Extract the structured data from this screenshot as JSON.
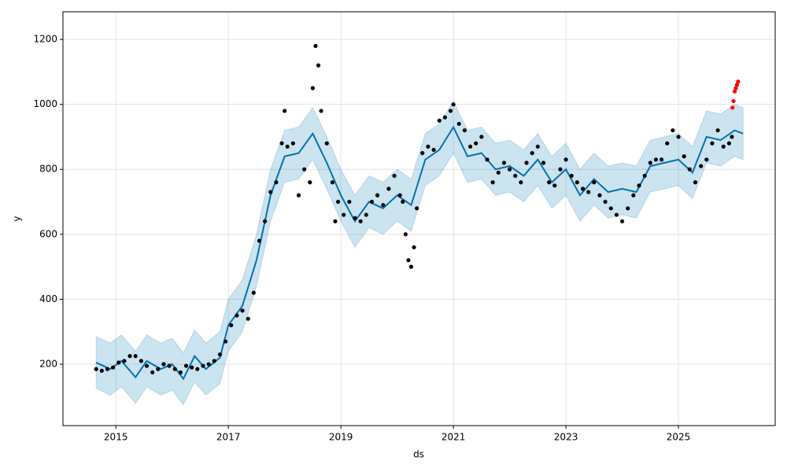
{
  "chart_data": {
    "type": "forecast",
    "xlabel": "ds",
    "ylabel": "y",
    "xlim": [
      2014.06,
      2026.72
    ],
    "ylim": [
      11,
      1285
    ],
    "xticks": [
      2015,
      2017,
      2019,
      2021,
      2023,
      2025
    ],
    "yticks": [
      200,
      400,
      600,
      800,
      1000,
      1200
    ],
    "grid": true,
    "series": [
      {
        "type": "band",
        "color": "#0072B2",
        "x": [
          2014.65,
          2014.9,
          2015.1,
          2015.35,
          2015.55,
          2015.8,
          2016.0,
          2016.2,
          2016.4,
          2016.6,
          2016.85,
          2017.0,
          2017.25,
          2017.5,
          2017.75,
          2018.0,
          2018.25,
          2018.5,
          2018.75,
          2019.0,
          2019.25,
          2019.5,
          2019.75,
          2020.0,
          2020.25,
          2020.5,
          2020.75,
          2021.0,
          2021.25,
          2021.5,
          2021.75,
          2022.0,
          2022.25,
          2022.5,
          2022.75,
          2023.0,
          2023.25,
          2023.5,
          2023.75,
          2024.0,
          2024.25,
          2024.5,
          2024.75,
          2025.0,
          2025.25,
          2025.5,
          2025.75,
          2026.0,
          2026.15
        ],
        "upper": [
          285,
          265,
          290,
          240,
          290,
          265,
          280,
          235,
          305,
          265,
          300,
          400,
          460,
          600,
          800,
          920,
          930,
          990,
          900,
          800,
          720,
          780,
          760,
          800,
          770,
          910,
          940,
          1010,
          920,
          930,
          880,
          890,
          860,
          910,
          840,
          880,
          800,
          850,
          810,
          820,
          810,
          890,
          900,
          910,
          870,
          980,
          970,
          1000,
          990
        ],
        "lower": [
          125,
          105,
          130,
          80,
          130,
          105,
          120,
          75,
          145,
          105,
          140,
          240,
          300,
          440,
          640,
          760,
          770,
          830,
          740,
          640,
          560,
          620,
          600,
          640,
          610,
          750,
          780,
          850,
          760,
          770,
          720,
          730,
          700,
          750,
          680,
          720,
          640,
          690,
          650,
          660,
          650,
          730,
          740,
          750,
          710,
          820,
          810,
          840,
          830
        ]
      },
      {
        "type": "line",
        "color": "#0072B2",
        "x": [
          2014.65,
          2014.9,
          2015.1,
          2015.35,
          2015.55,
          2015.8,
          2016.0,
          2016.2,
          2016.4,
          2016.6,
          2016.85,
          2017.0,
          2017.25,
          2017.5,
          2017.75,
          2018.0,
          2018.25,
          2018.5,
          2018.75,
          2019.0,
          2019.25,
          2019.5,
          2019.75,
          2020.0,
          2020.25,
          2020.5,
          2020.75,
          2021.0,
          2021.25,
          2021.5,
          2021.75,
          2022.0,
          2022.25,
          2022.5,
          2022.75,
          2023.0,
          2023.25,
          2023.5,
          2023.75,
          2024.0,
          2024.25,
          2024.5,
          2024.75,
          2025.0,
          2025.25,
          2025.5,
          2025.75,
          2026.0,
          2026.15
        ],
        "values": [
          205,
          185,
          210,
          160,
          210,
          185,
          200,
          155,
          225,
          185,
          220,
          320,
          380,
          520,
          720,
          840,
          850,
          910,
          820,
          720,
          640,
          700,
          680,
          720,
          690,
          830,
          860,
          930,
          840,
          850,
          800,
          810,
          780,
          830,
          760,
          800,
          720,
          770,
          730,
          740,
          730,
          810,
          820,
          830,
          790,
          900,
          890,
          920,
          910
        ]
      },
      {
        "type": "scatter",
        "color": "#000000",
        "x": [
          2014.65,
          2014.75,
          2014.85,
          2014.95,
          2015.05,
          2015.15,
          2015.25,
          2015.35,
          2015.45,
          2015.55,
          2015.65,
          2015.75,
          2015.85,
          2015.95,
          2016.05,
          2016.15,
          2016.25,
          2016.35,
          2016.45,
          2016.55,
          2016.65,
          2016.75,
          2016.85,
          2016.95,
          2017.05,
          2017.15,
          2017.25,
          2017.35,
          2017.45,
          2017.55,
          2017.65,
          2017.75,
          2017.85,
          2017.95,
          2018.0,
          2018.05,
          2018.15,
          2018.25,
          2018.35,
          2018.45,
          2018.5,
          2018.55,
          2018.6,
          2018.65,
          2018.75,
          2018.85,
          2018.9,
          2018.95,
          2019.05,
          2019.15,
          2019.25,
          2019.35,
          2019.45,
          2019.55,
          2019.65,
          2019.75,
          2019.85,
          2019.95,
          2020.05,
          2020.1,
          2020.15,
          2020.2,
          2020.25,
          2020.3,
          2020.35,
          2020.45,
          2020.55,
          2020.65,
          2020.75,
          2020.85,
          2020.95,
          2021.0,
          2021.1,
          2021.2,
          2021.3,
          2021.4,
          2021.5,
          2021.6,
          2021.7,
          2021.8,
          2021.9,
          2022.0,
          2022.1,
          2022.2,
          2022.3,
          2022.4,
          2022.5,
          2022.6,
          2022.7,
          2022.8,
          2022.9,
          2023.0,
          2023.1,
          2023.2,
          2023.3,
          2023.4,
          2023.5,
          2023.6,
          2023.7,
          2023.8,
          2023.9,
          2024.0,
          2024.1,
          2024.2,
          2024.3,
          2024.4,
          2024.5,
          2024.6,
          2024.7,
          2024.8,
          2024.9,
          2025.0,
          2025.1,
          2025.2,
          2025.3,
          2025.4,
          2025.5,
          2025.6,
          2025.7,
          2025.8,
          2025.9,
          2025.95
        ],
        "values": [
          185,
          180,
          185,
          190,
          205,
          210,
          225,
          225,
          210,
          195,
          175,
          185,
          200,
          195,
          185,
          175,
          195,
          190,
          185,
          195,
          200,
          210,
          230,
          270,
          320,
          350,
          365,
          340,
          420,
          580,
          640,
          730,
          760,
          880,
          980,
          870,
          880,
          720,
          800,
          760,
          1050,
          1180,
          1120,
          980,
          880,
          760,
          640,
          700,
          660,
          700,
          650,
          640,
          660,
          700,
          720,
          690,
          740,
          780,
          720,
          700,
          600,
          520,
          500,
          560,
          680,
          850,
          870,
          860,
          950,
          960,
          980,
          1000,
          940,
          920,
          870,
          880,
          900,
          830,
          760,
          790,
          820,
          800,
          780,
          760,
          820,
          850,
          870,
          820,
          760,
          750,
          800,
          830,
          780,
          760,
          740,
          730,
          760,
          720,
          700,
          680,
          660,
          640,
          680,
          720,
          750,
          780,
          820,
          830,
          830,
          880,
          920,
          900,
          840,
          800,
          760,
          810,
          830,
          880,
          920,
          870,
          880,
          900
        ]
      },
      {
        "type": "scatter",
        "color": "#ff0000",
        "x": [
          2025.96,
          2025.98,
          2026.0,
          2026.02,
          2026.04,
          2026.06
        ],
        "values": [
          990,
          1010,
          1040,
          1050,
          1060,
          1070
        ]
      }
    ]
  }
}
